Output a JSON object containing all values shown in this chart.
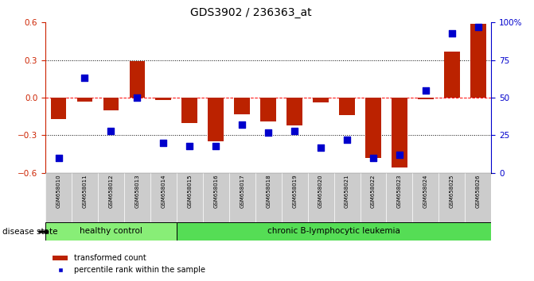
{
  "title": "GDS3902 / 236363_at",
  "samples": [
    "GSM658010",
    "GSM658011",
    "GSM658012",
    "GSM658013",
    "GSM658014",
    "GSM658015",
    "GSM658016",
    "GSM658017",
    "GSM658018",
    "GSM658019",
    "GSM658020",
    "GSM658021",
    "GSM658022",
    "GSM658023",
    "GSM658024",
    "GSM658025",
    "GSM658026"
  ],
  "bar_values": [
    -0.17,
    -0.03,
    -0.1,
    0.29,
    -0.02,
    -0.2,
    -0.35,
    -0.13,
    -0.19,
    -0.22,
    -0.04,
    -0.14,
    -0.48,
    -0.56,
    -0.01,
    0.37,
    0.59
  ],
  "dot_values_pct": [
    10,
    63,
    28,
    50,
    20,
    18,
    18,
    32,
    27,
    28,
    17,
    22,
    10,
    12,
    55,
    93,
    97
  ],
  "bar_color": "#bb2200",
  "dot_color": "#0000cc",
  "ylim_left": [
    -0.6,
    0.6
  ],
  "ylim_right": [
    0,
    100
  ],
  "yticks_left": [
    -0.6,
    -0.3,
    0.0,
    0.3,
    0.6
  ],
  "yticks_right": [
    0,
    25,
    50,
    75,
    100
  ],
  "ytick_labels_right": [
    "0",
    "25",
    "50",
    "75",
    "100%"
  ],
  "healthy_count": 5,
  "healthy_label": "healthy control",
  "disease_label": "chronic B-lymphocytic leukemia",
  "disease_state_label": "disease state",
  "healthy_color": "#88ee77",
  "disease_color": "#55dd55",
  "group_box_color": "#cccccc",
  "legend_bar_label": "transformed count",
  "legend_dot_label": "percentile rank within the sample",
  "bar_width": 0.6,
  "dot_size": 28,
  "axis_color_left": "#cc2200",
  "axis_color_right": "#0000cc"
}
